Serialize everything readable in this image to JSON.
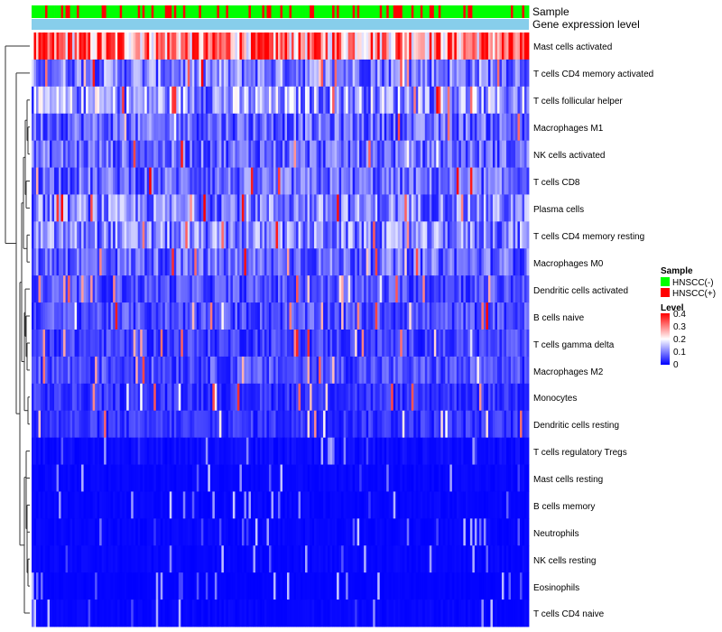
{
  "chart_data": {
    "type": "heatmap",
    "title": "",
    "annotation_rows": [
      {
        "label": "Sample"
      },
      {
        "label": "Gene expression level"
      }
    ],
    "row_labels": [
      "Mast cells activated",
      "T cells CD4 memory activated",
      "T cells follicular helper",
      "Macrophages M1",
      "NK cells activated",
      "T cells CD8",
      "Plasma cells",
      "T cells CD4 memory resting",
      "Macrophages M0",
      "Dendritic cells activated",
      "B cells naive",
      "T cells gamma delta",
      "Macrophages M2",
      "Monocytes",
      "Dendritic cells resting",
      "T cells regulatory  Tregs",
      "Mast cells resting",
      "B cells memory",
      "Neutrophils",
      "NK cells resting",
      "Eosinophils",
      "T cells CD4 naive"
    ],
    "row_typical_level": [
      0.3,
      0.1,
      0.12,
      0.08,
      0.08,
      0.08,
      0.1,
      0.1,
      0.08,
      0.06,
      0.06,
      0.05,
      0.06,
      0.04,
      0.04,
      0.02,
      0.01,
      0.01,
      0.01,
      0.01,
      0.005,
      0.01
    ],
    "n_samples": 220,
    "color_scale": {
      "min": 0,
      "max": 0.4,
      "low": "#0000ff",
      "mid": "#ffffff",
      "high": "#ff0000"
    },
    "legend": {
      "sample_title": "Sample",
      "sample_groups": [
        {
          "name": "HNSCC(-)",
          "color": "#00ff00"
        },
        {
          "name": "HNSCC(+)",
          "color": "#ff0000"
        }
      ],
      "level_title": "Level",
      "level_ticks": [
        "0.4",
        "0.3",
        "0.2",
        "0.1",
        "0"
      ]
    },
    "gene_expression_bar_color": "#87ceeb"
  }
}
